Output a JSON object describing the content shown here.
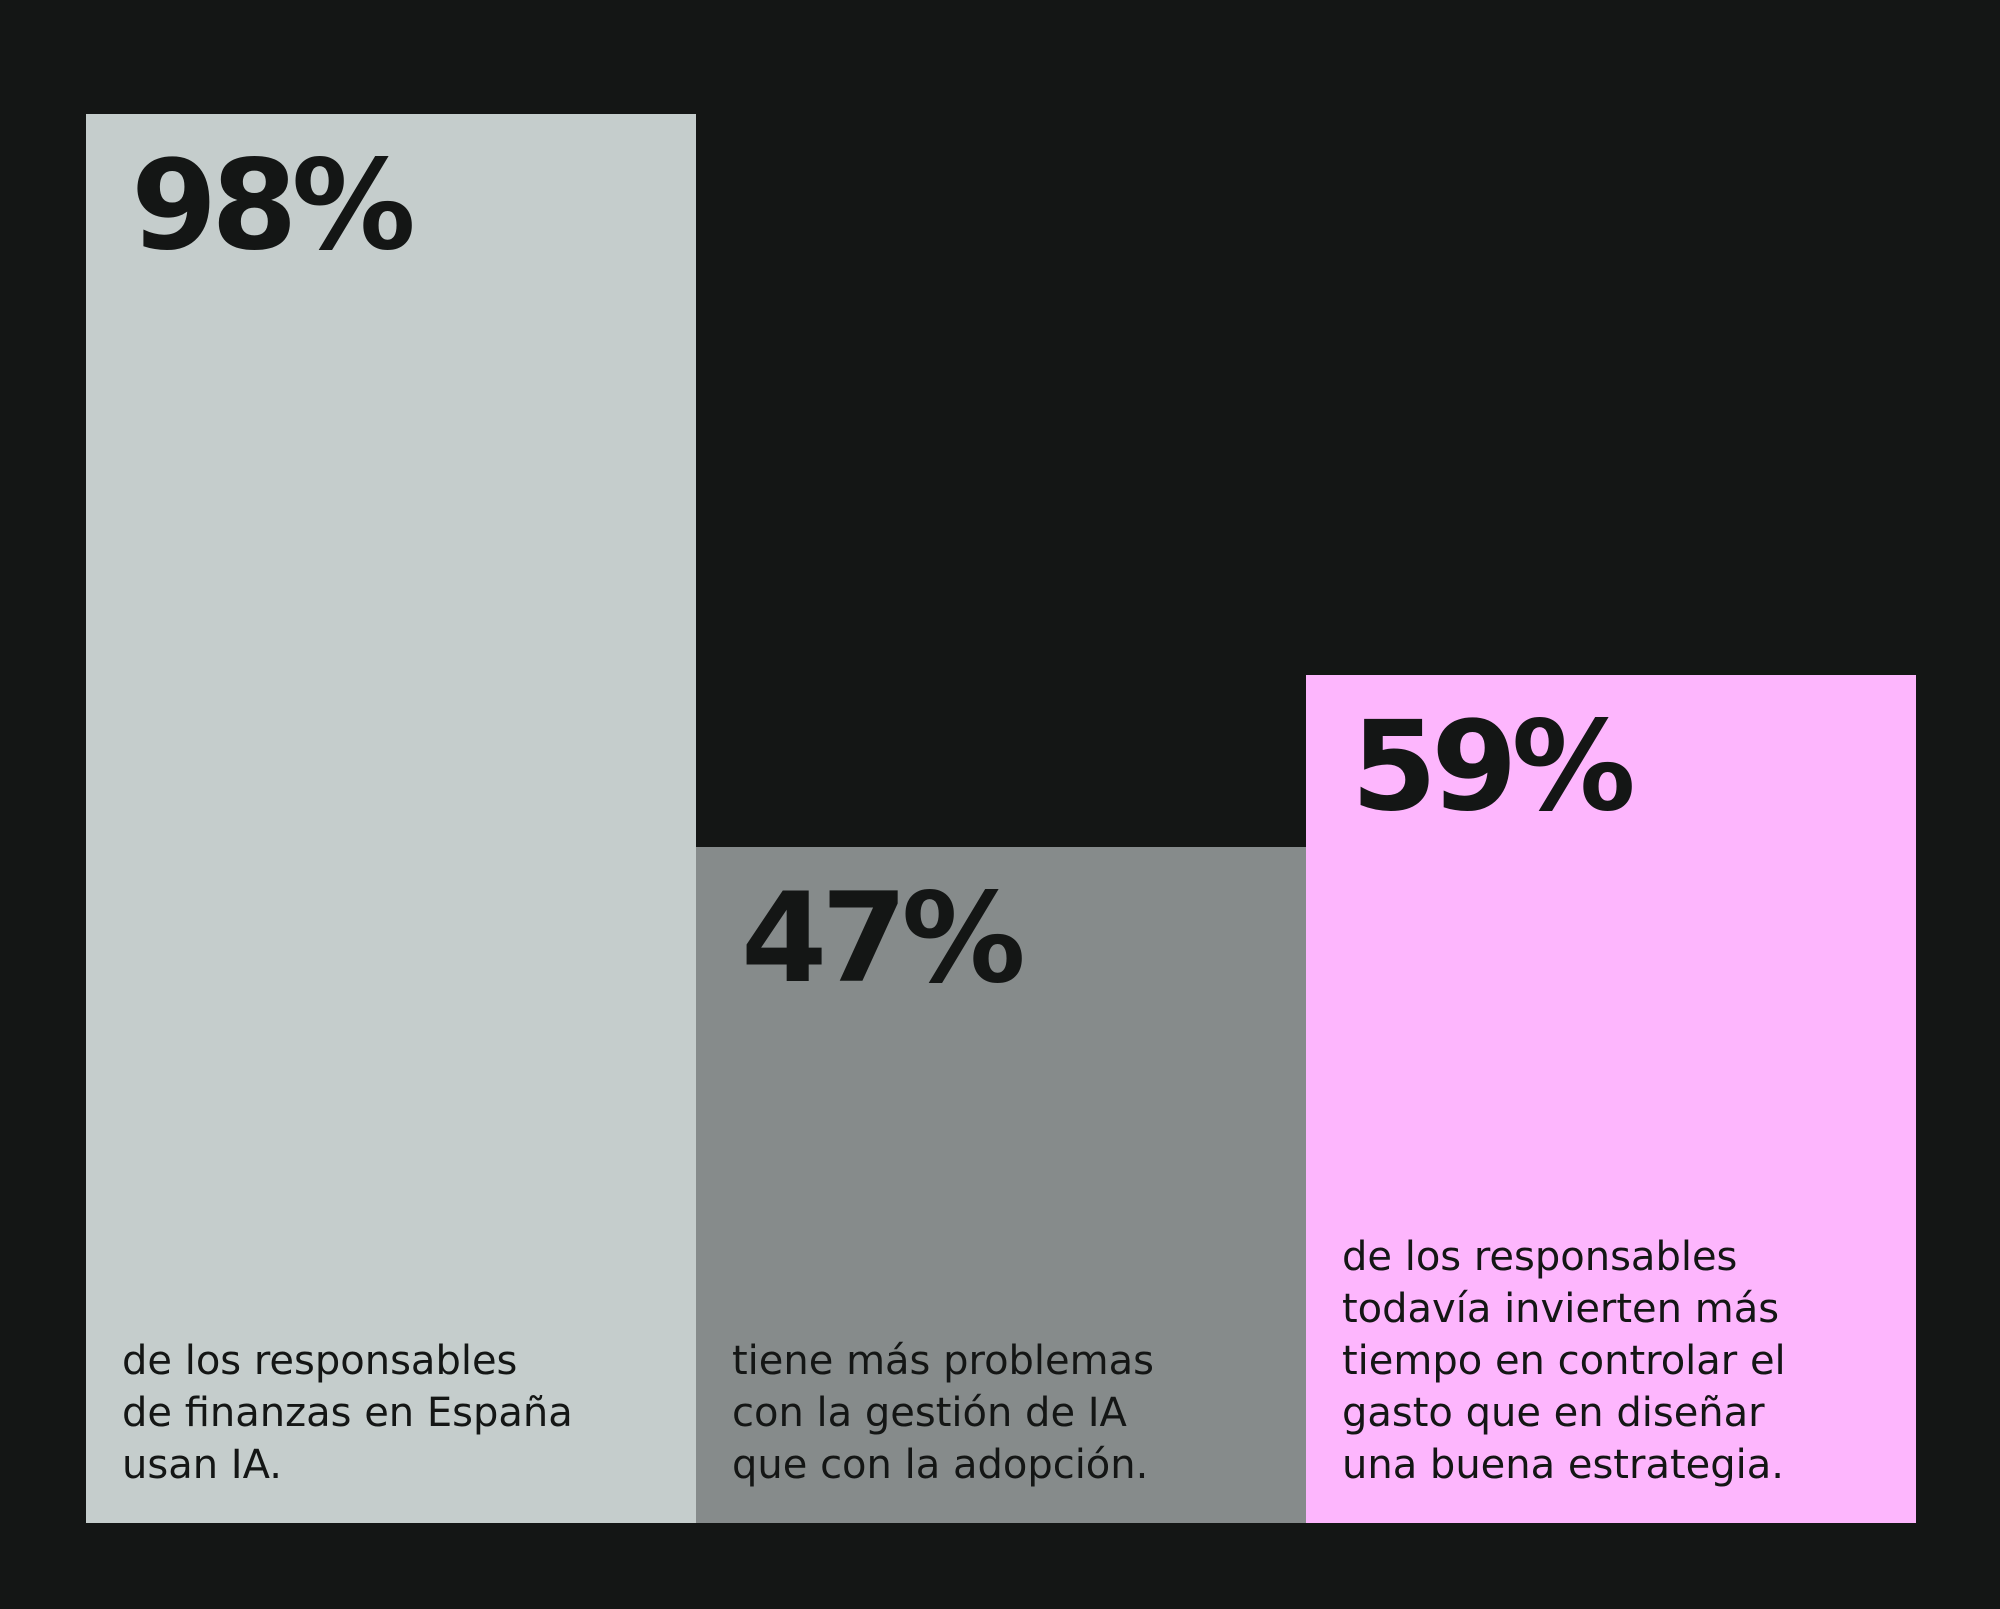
{
  "chart_data": {
    "type": "bar",
    "title": "",
    "xlabel": "",
    "ylabel": "",
    "ylim": [
      0,
      100
    ],
    "grid": false,
    "legend": "none",
    "categories": [
      "de los responsables\nde finanzas en España\nusan IA.",
      "tiene más problemas\ncon la gestión de IA\nque con la adopción.",
      "de los responsables\ntodavía invierten más\ntiempo en controlar el\ngasto que en diseñar\nuna buena estrategia."
    ],
    "values": [
      98,
      47,
      59
    ],
    "value_labels": [
      "98%",
      "47%",
      "59%"
    ],
    "colors": [
      "#c5cdcc",
      "#868b8b",
      "#fdb6fd"
    ]
  },
  "colors": {
    "background": "#141615",
    "text": "#141615"
  }
}
